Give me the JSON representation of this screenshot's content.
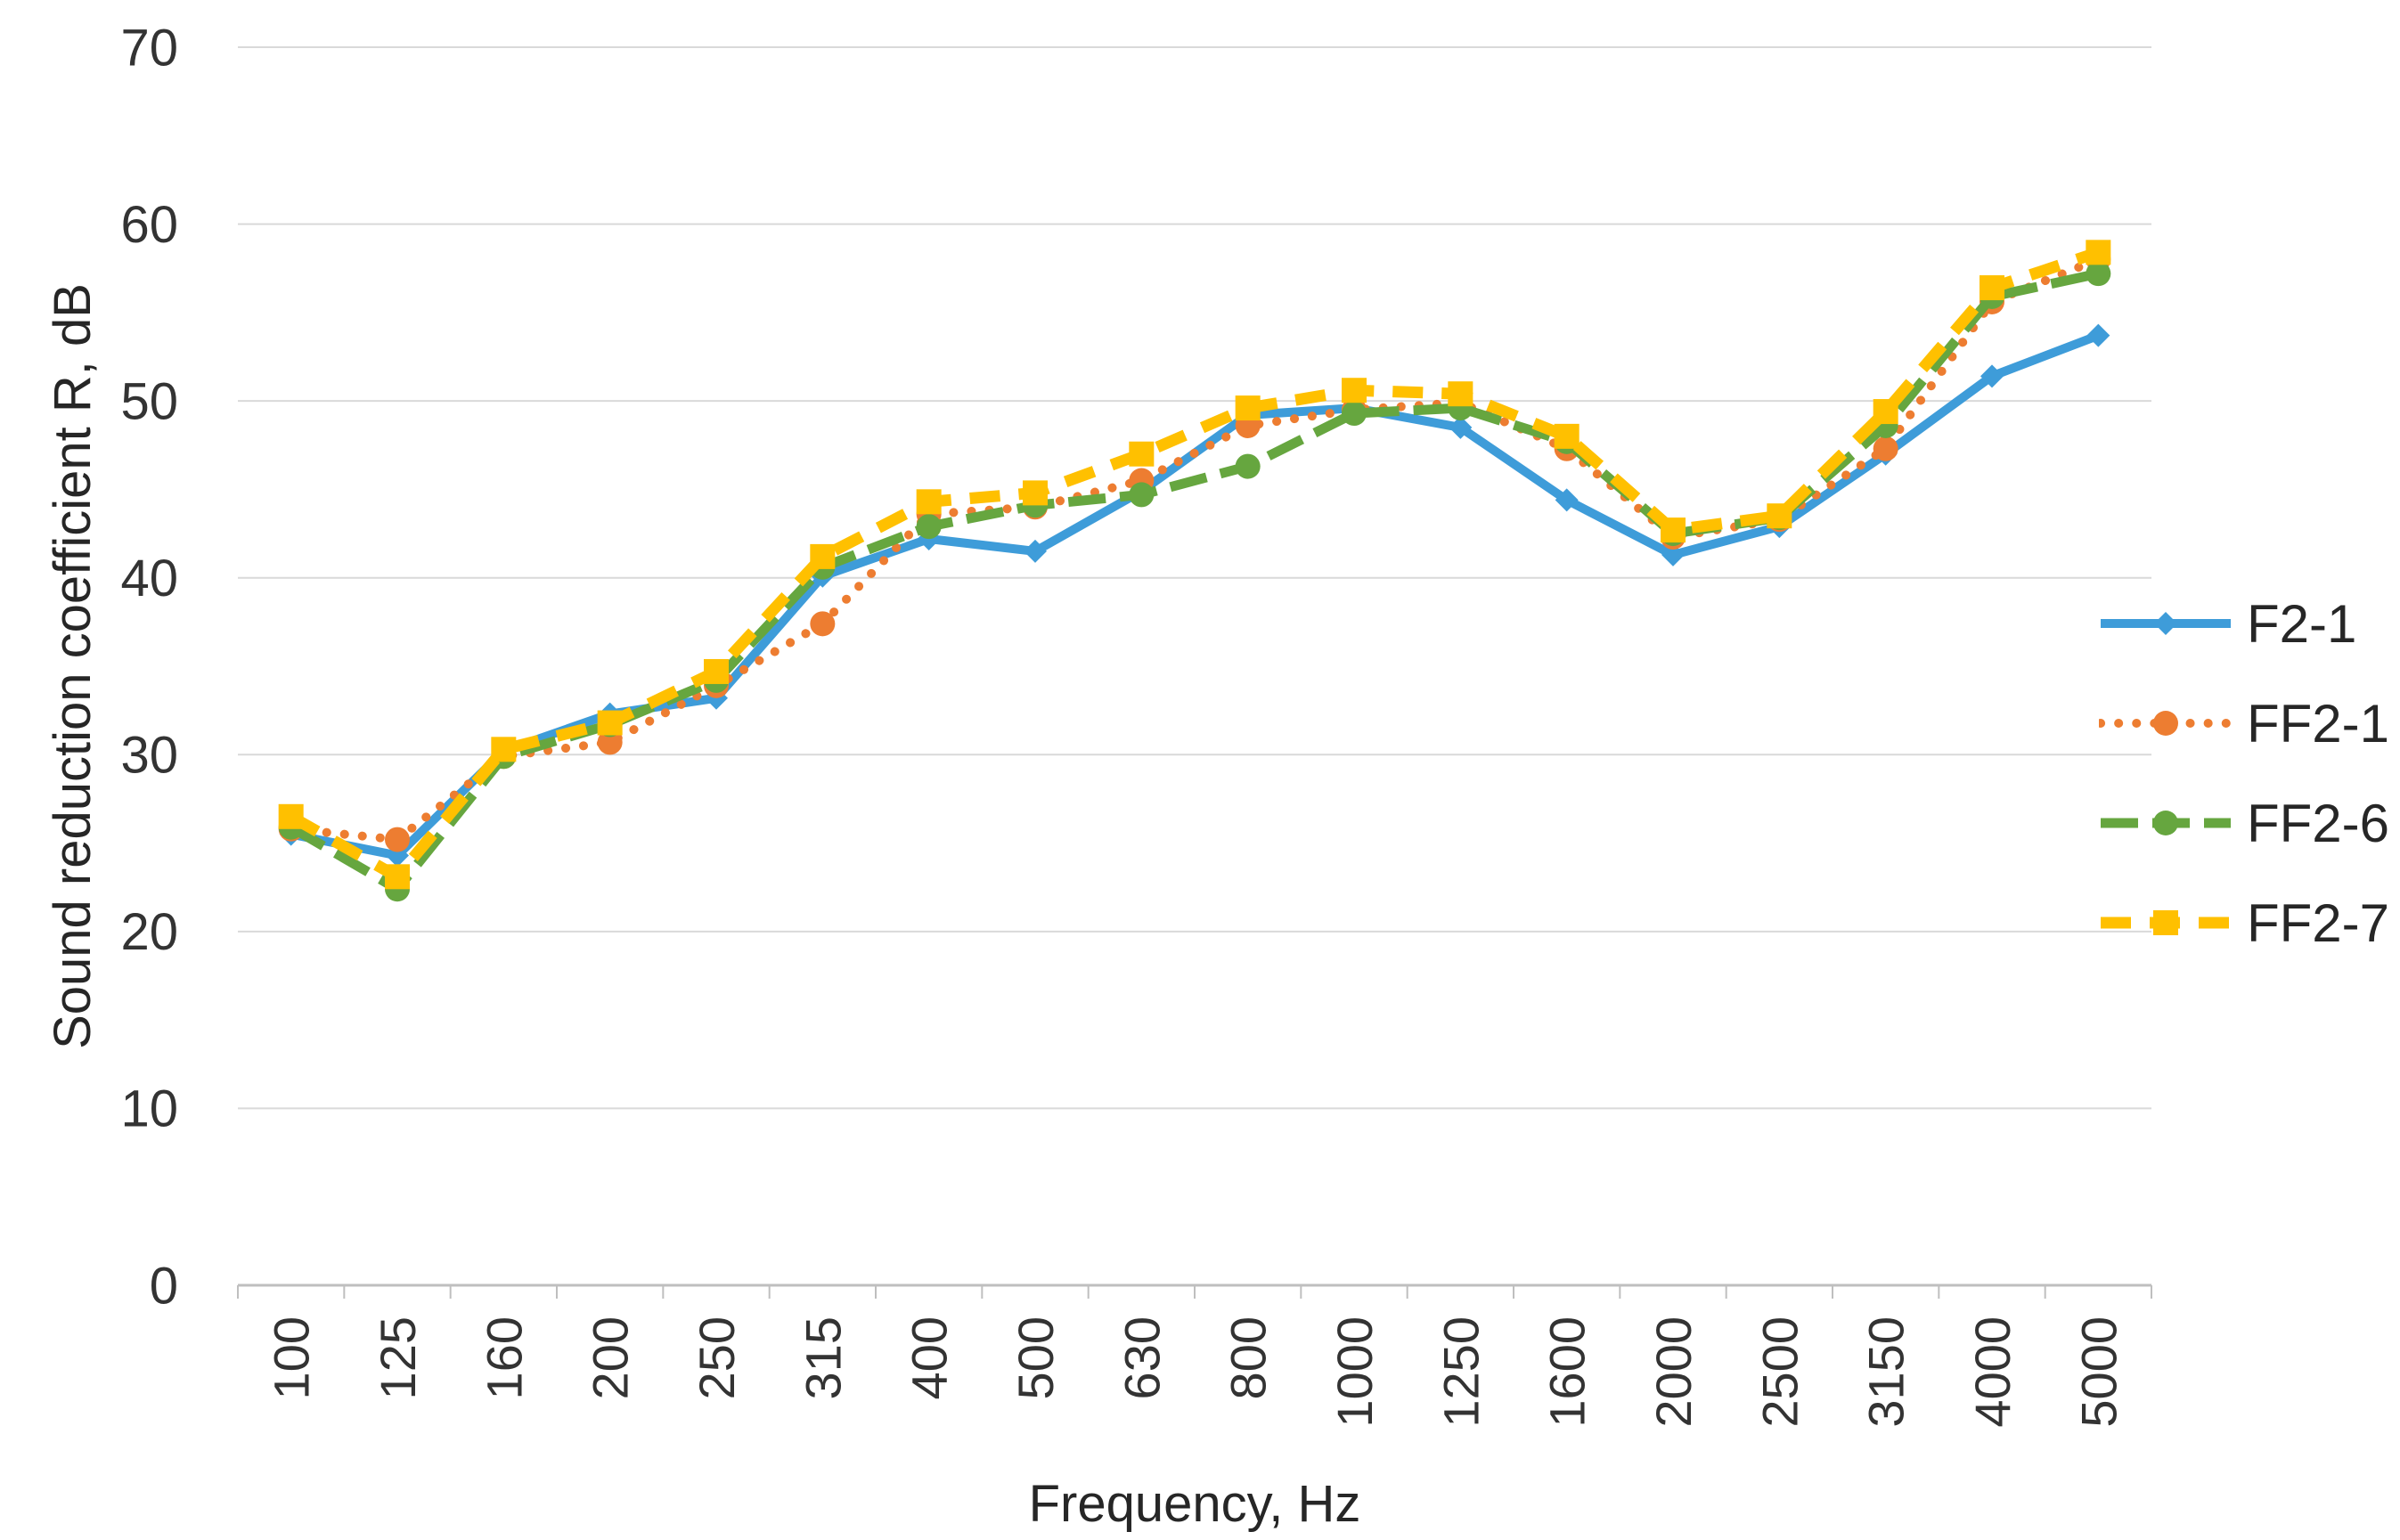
{
  "chart_data": {
    "type": "line",
    "title": "",
    "xlabel": "Frequency, Hz",
    "ylabel": "Sound reduction coefficient R, dB",
    "ylim": [
      0,
      70
    ],
    "ytick_step": 10,
    "yticks": [
      "0",
      "10",
      "20",
      "30",
      "40",
      "50",
      "60",
      "70"
    ],
    "grid": true,
    "legend_position": "right",
    "axis_color": "#BFBFBF",
    "gridline_color": "#D9D9D9",
    "tick_text_color": "#333333",
    "categories": [
      "100",
      "125",
      "160",
      "200",
      "250",
      "315",
      "400",
      "500",
      "630",
      "800",
      "1000",
      "1250",
      "1600",
      "2000",
      "2500",
      "3150",
      "4000",
      "5000"
    ],
    "series": [
      {
        "name": "F2-1",
        "color": "#3E9CD9",
        "dash": "solid",
        "marker": "diamond",
        "values": [
          25.5,
          24.3,
          30.2,
          32.3,
          33.2,
          40.1,
          42.2,
          41.5,
          44.9,
          49.2,
          49.6,
          48.5,
          44.4,
          41.3,
          42.9,
          47.0,
          51.4,
          53.7
        ]
      },
      {
        "name": "FF2-1",
        "color": "#ED7D31",
        "dash": "dot",
        "marker": "circle",
        "values": [
          25.8,
          25.2,
          29.9,
          30.7,
          33.9,
          37.4,
          43.6,
          44.0,
          45.5,
          48.6,
          49.5,
          49.9,
          47.3,
          42.3,
          43.3,
          47.3,
          55.6,
          58.0
        ]
      },
      {
        "name": "FF2-6",
        "color": "#66A63F",
        "dash": "longdash",
        "marker": "circle",
        "values": [
          25.9,
          22.4,
          29.9,
          31.7,
          34.2,
          40.6,
          42.9,
          44.1,
          44.7,
          46.3,
          49.3,
          49.6,
          47.7,
          42.5,
          43.4,
          48.6,
          55.9,
          57.2
        ]
      },
      {
        "name": "FF2-7",
        "color": "#FFC000",
        "dash": "dash",
        "marker": "square",
        "values": [
          26.5,
          23.1,
          30.3,
          31.8,
          34.7,
          41.2,
          44.3,
          44.8,
          47.0,
          49.6,
          50.6,
          50.4,
          48.0,
          42.7,
          43.5,
          49.4,
          56.4,
          58.4
        ]
      }
    ]
  }
}
